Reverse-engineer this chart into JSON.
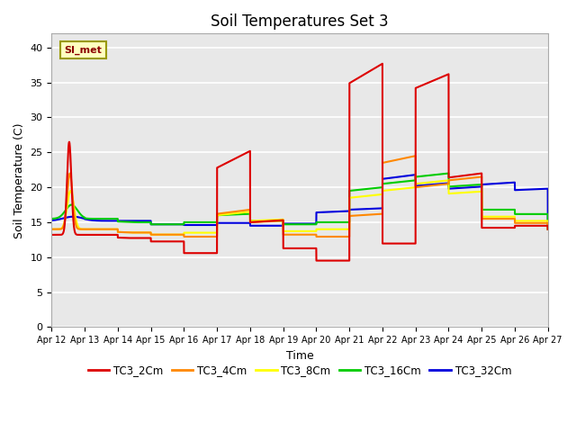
{
  "title": "Soil Temperatures Set 3",
  "xlabel": "Time",
  "ylabel": "Soil Temperature (C)",
  "ylim": [
    0,
    42
  ],
  "xlim": [
    0,
    15
  ],
  "yticks": [
    0,
    5,
    10,
    15,
    20,
    25,
    30,
    35,
    40
  ],
  "xtick_labels": [
    "Apr 12",
    "Apr 13",
    "Apr 14",
    "Apr 15",
    "Apr 16",
    "Apr 17",
    "Apr 18",
    "Apr 19",
    "Apr 20",
    "Apr 21",
    "Apr 22",
    "Apr 23",
    "Apr 24",
    "Apr 25",
    "Apr 26",
    "Apr 27"
  ],
  "series_colors": [
    "#dd0000",
    "#ff8800",
    "#ffff00",
    "#00cc00",
    "#0000dd"
  ],
  "series_labels": [
    "TC3_2Cm",
    "TC3_4Cm",
    "TC3_8Cm",
    "TC3_16Cm",
    "TC3_32Cm"
  ],
  "bg_color": "#e8e8e8",
  "annotation_text": "SI_met",
  "grid_color": "white",
  "title_fontsize": 12,
  "label_fontsize": 9,
  "tick_fontsize": 8
}
